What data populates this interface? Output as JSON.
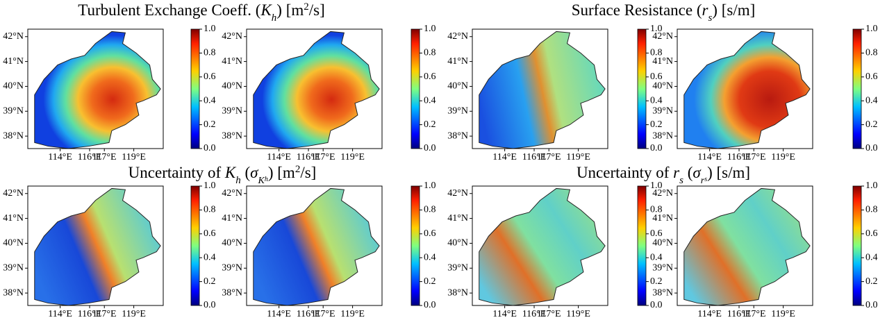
{
  "titles": [
    [
      "Turbulent Exchange Coeff. (",
      "K",
      "h",
      ") [m",
      "2",
      "/s]"
    ],
    [
      "Surface Resistance (",
      "r",
      "s",
      ") [s/m]"
    ],
    [
      "Uncertainty of ",
      "K",
      "h",
      " (",
      "σ",
      "K",
      "h",
      ") [m",
      "2",
      "/s]"
    ],
    [
      "Uncertainty of ",
      "r",
      "s",
      " (",
      "σ",
      "r",
      "s",
      ") [s/m]"
    ]
  ],
  "map_axes": {
    "xlim": [
      111.8,
      121
    ],
    "ylim": [
      37.5,
      42.3
    ],
    "xticks": [
      {
        "value": 114,
        "label": "114°E"
      },
      {
        "value": 116,
        "label": "116°E"
      },
      {
        "value": 117,
        "label": "117°E"
      },
      {
        "value": 119,
        "label": "119°E"
      }
    ],
    "yticks": [
      {
        "value": 42,
        "label": "42°N"
      },
      {
        "value": 41,
        "label": "41°N"
      },
      {
        "value": 40,
        "label": "40°N"
      },
      {
        "value": 39,
        "label": "39°N"
      },
      {
        "value": 38,
        "label": "38°N"
      }
    ]
  },
  "colorbar": {
    "ylim": [
      0,
      1
    ],
    "ticks": [
      {
        "value": 0,
        "label": "0.0"
      },
      {
        "value": 0.2,
        "label": "0.2"
      },
      {
        "value": 0.4,
        "label": "0.4"
      },
      {
        "value": 0.6,
        "label": "0.6"
      },
      {
        "value": 0.8,
        "label": "0.8"
      },
      {
        "value": 1,
        "label": "1.0"
      }
    ]
  }
}
